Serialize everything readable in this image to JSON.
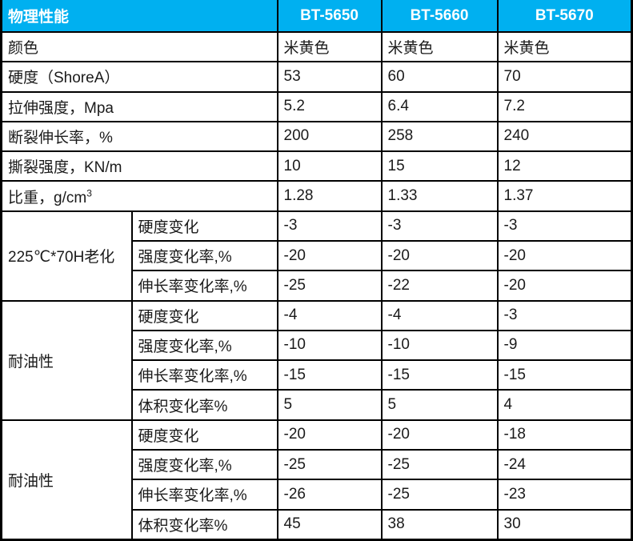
{
  "colors": {
    "header_bg": "#00B0F0",
    "header_text": "#FFFFFF",
    "body_text": "#1A1A1A",
    "border": "#000000"
  },
  "header": {
    "title": "物理性能",
    "columns": [
      "BT-5650",
      "BT-5660",
      "BT-5670"
    ]
  },
  "simple_rows": [
    {
      "label": "颜色",
      "values": [
        "米黄色",
        "米黄色",
        "米黄色"
      ]
    },
    {
      "label": "硬度（ShoreA）",
      "values": [
        "53",
        "60",
        "70"
      ]
    },
    {
      "label": "拉伸强度，Mpa",
      "values": [
        "5.2",
        "6.4",
        "7.2"
      ]
    },
    {
      "label": "断裂伸长率，%",
      "values": [
        "200",
        "258",
        "240"
      ]
    },
    {
      "label": "撕裂强度，KN/m",
      "values": [
        "10",
        "15",
        "12"
      ]
    },
    {
      "label": "比重，g/cm",
      "label_sup": "3",
      "values": [
        "1.28",
        "1.33",
        "1.37"
      ]
    }
  ],
  "groups": [
    {
      "label": "225℃*70H老化",
      "rows": [
        {
          "label": "硬度变化",
          "values": [
            "-3",
            "-3",
            "-3"
          ]
        },
        {
          "label": "强度变化率,%",
          "values": [
            "-20",
            "-20",
            "-20"
          ]
        },
        {
          "label": "伸长率变化率,%",
          "values": [
            "-25",
            "-22",
            "-20"
          ]
        }
      ]
    },
    {
      "label": "耐油性",
      "rows": [
        {
          "label": "硬度变化",
          "values": [
            "-4",
            "-4",
            "-3"
          ]
        },
        {
          "label": "强度变化率,%",
          "values": [
            "-10",
            "-10",
            "-9"
          ]
        },
        {
          "label": "伸长率变化率,%",
          "values": [
            "-15",
            "-15",
            "-15"
          ]
        },
        {
          "label": "体积变化率%",
          "values": [
            "5",
            "5",
            "4"
          ]
        }
      ]
    },
    {
      "label": "耐油性",
      "rows": [
        {
          "label": "硬度变化",
          "values": [
            "-20",
            "-20",
            "-18"
          ]
        },
        {
          "label": "强度变化率,%",
          "values": [
            "-25",
            "-25",
            "-24"
          ]
        },
        {
          "label": "伸长率变化率,%",
          "values": [
            "-26",
            "-25",
            "-23"
          ]
        },
        {
          "label": "体积变化率%",
          "values": [
            "45",
            "38",
            "30"
          ]
        }
      ]
    }
  ],
  "chart_data": {
    "type": "table",
    "title": "物理性能",
    "columns": [
      "物理性能",
      "",
      "BT-5650",
      "BT-5660",
      "BT-5670"
    ],
    "rows": [
      [
        "颜色",
        "",
        "米黄色",
        "米黄色",
        "米黄色"
      ],
      [
        "硬度（ShoreA）",
        "",
        "53",
        "60",
        "70"
      ],
      [
        "拉伸强度，Mpa",
        "",
        "5.2",
        "6.4",
        "7.2"
      ],
      [
        "断裂伸长率，%",
        "",
        "200",
        "258",
        "240"
      ],
      [
        "撕裂强度，KN/m",
        "",
        "10",
        "15",
        "12"
      ],
      [
        "比重，g/cm³",
        "",
        "1.28",
        "1.33",
        "1.37"
      ],
      [
        "225℃*70H老化",
        "硬度变化",
        "-3",
        "-3",
        "-3"
      ],
      [
        "225℃*70H老化",
        "强度变化率,%",
        "-20",
        "-20",
        "-20"
      ],
      [
        "225℃*70H老化",
        "伸长率变化率,%",
        "-25",
        "-22",
        "-20"
      ],
      [
        "耐油性",
        "硬度变化",
        "-4",
        "-4",
        "-3"
      ],
      [
        "耐油性",
        "强度变化率,%",
        "-10",
        "-10",
        "-9"
      ],
      [
        "耐油性",
        "伸长率变化率,%",
        "-15",
        "-15",
        "-15"
      ],
      [
        "耐油性",
        "体积变化率%",
        "5",
        "5",
        "4"
      ],
      [
        "耐油性",
        "硬度变化",
        "-20",
        "-20",
        "-18"
      ],
      [
        "耐油性",
        "强度变化率,%",
        "-25",
        "-25",
        "-24"
      ],
      [
        "耐油性",
        "伸长率变化率,%",
        "-26",
        "-25",
        "-23"
      ],
      [
        "耐油性",
        "体积变化率%",
        "45",
        "38",
        "30"
      ]
    ]
  }
}
